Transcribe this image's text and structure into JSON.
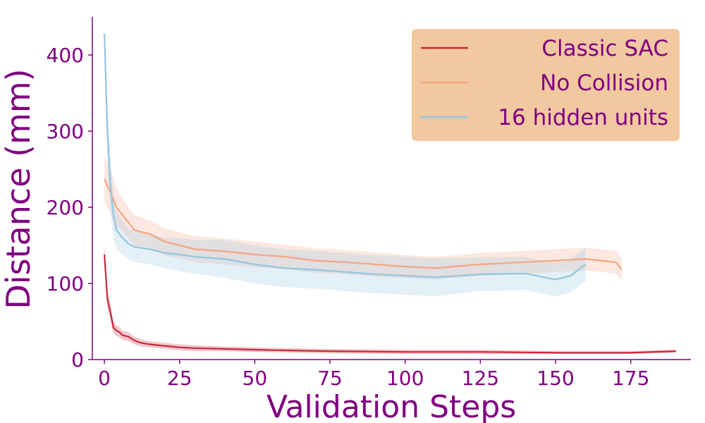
{
  "colors": {
    "axis": "#800080",
    "legend_bg": "#f2c8a0",
    "classic": "#c8283c",
    "nocollision": "#f4a582",
    "hidden16": "#92c5de"
  },
  "chart_data": {
    "type": "line",
    "title": "",
    "xlabel": "Validation Steps",
    "ylabel": "Distance (mm)",
    "xlim": [
      -4,
      195
    ],
    "ylim": [
      0,
      450
    ],
    "xticks": [
      0,
      25,
      50,
      75,
      100,
      125,
      150,
      175
    ],
    "yticks": [
      0,
      100,
      200,
      300,
      400
    ],
    "grid": false,
    "legend_position": "top-right",
    "series": [
      {
        "name": "Classic SAC",
        "color": "#c8283c",
        "x": [
          0,
          1,
          2,
          3,
          4,
          5,
          6,
          8,
          10,
          12,
          15,
          20,
          25,
          30,
          40,
          50,
          60,
          75,
          100,
          125,
          150,
          175,
          190
        ],
        "y": [
          138,
          80,
          62,
          42,
          38,
          36,
          32,
          30,
          25,
          22,
          20,
          18,
          16,
          15,
          14,
          13,
          12,
          11,
          10,
          10,
          9,
          9,
          11
        ],
        "band": [
          14,
          12,
          10,
          8,
          7,
          7,
          6,
          6,
          5,
          5,
          4,
          4,
          4,
          4,
          3,
          3,
          3,
          3,
          3,
          3,
          2,
          2,
          2
        ]
      },
      {
        "name": "No Collision",
        "color": "#f4a582",
        "x": [
          0,
          2,
          4,
          6,
          8,
          10,
          15,
          20,
          25,
          30,
          40,
          50,
          60,
          70,
          80,
          90,
          100,
          110,
          125,
          140,
          150,
          160,
          165,
          170,
          172
        ],
        "y": [
          237,
          220,
          200,
          190,
          180,
          170,
          165,
          155,
          150,
          145,
          142,
          138,
          135,
          130,
          128,
          125,
          122,
          120,
          125,
          128,
          130,
          132,
          130,
          128,
          118
        ],
        "band": [
          30,
          28,
          25,
          22,
          20,
          20,
          18,
          18,
          17,
          17,
          17,
          17,
          16,
          16,
          16,
          16,
          15,
          15,
          15,
          15,
          15,
          15,
          15,
          15,
          15
        ]
      },
      {
        "name": "16 hidden units",
        "color": "#92c5de",
        "x": [
          0,
          1,
          2,
          3,
          4,
          6,
          8,
          10,
          15,
          20,
          25,
          30,
          40,
          50,
          60,
          70,
          80,
          90,
          100,
          110,
          125,
          140,
          150,
          155,
          160
        ],
        "y": [
          428,
          300,
          230,
          190,
          170,
          160,
          152,
          148,
          145,
          140,
          138,
          135,
          132,
          125,
          120,
          118,
          115,
          112,
          110,
          108,
          112,
          113,
          105,
          110,
          125
        ],
        "band": [
          15,
          40,
          35,
          30,
          25,
          22,
          20,
          20,
          20,
          20,
          22,
          22,
          25,
          25,
          25,
          25,
          25,
          25,
          25,
          25,
          22,
          22,
          22,
          22,
          22
        ]
      }
    ]
  }
}
